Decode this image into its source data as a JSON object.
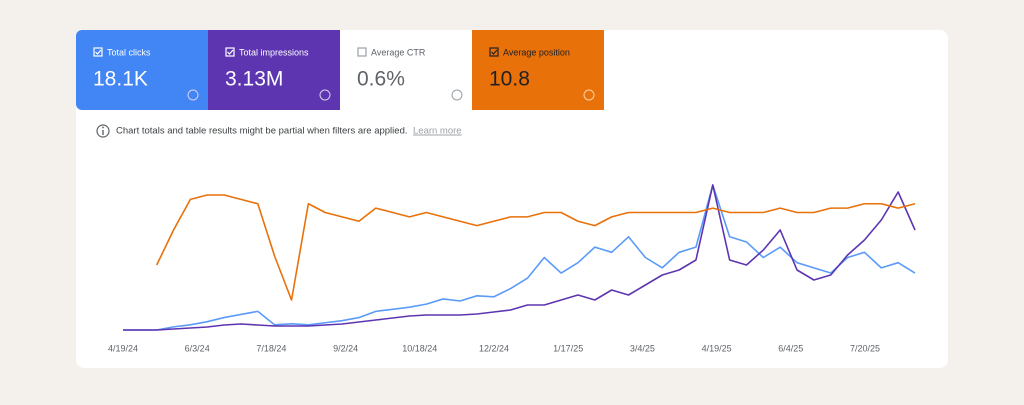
{
  "metrics": [
    {
      "label": "Total clicks",
      "value": "18.1K",
      "color": "#4285f4",
      "checked": true
    },
    {
      "label": "Total impressions",
      "value": "3.13M",
      "color": "#5e35b1",
      "checked": true
    },
    {
      "label": "Average CTR",
      "value": "0.6%",
      "color": "#ffffff",
      "checked": false
    },
    {
      "label": "Average position",
      "value": "10.8",
      "color": "#e8710a",
      "checked": true
    }
  ],
  "notice": {
    "text": "Chart totals and table results might be partial when filters are applied.",
    "link": "Learn more"
  },
  "chart_data": {
    "type": "line",
    "xticks": [
      "4/19/24",
      "6/3/24",
      "7/18/24",
      "9/2/24",
      "10/18/24",
      "12/2/24",
      "1/17/25",
      "3/4/25",
      "4/19/25",
      "6/4/25",
      "7/20/25"
    ],
    "series": [
      {
        "color": "#5b9bf8",
        "values": [
          0,
          0,
          0,
          3,
          5,
          8,
          12,
          15,
          18,
          5,
          6,
          5,
          7,
          9,
          12,
          18,
          20,
          22,
          25,
          30,
          28,
          33,
          32,
          40,
          50,
          70,
          55,
          65,
          80,
          75,
          90,
          70,
          60,
          75,
          80,
          140,
          90,
          85,
          70,
          80,
          65,
          60,
          55,
          70,
          75,
          60,
          65,
          55
        ]
      },
      {
        "color": "#5e35b1",
        "values": [
          0,
          0,
          0,
          1,
          2,
          3,
          5,
          6,
          5,
          4,
          4,
          4,
          5,
          6,
          8,
          10,
          12,
          14,
          15,
          15,
          15,
          16,
          18,
          20,
          25,
          25,
          30,
          35,
          30,
          40,
          35,
          45,
          55,
          60,
          70,
          145,
          70,
          65,
          80,
          100,
          60,
          50,
          55,
          75,
          90,
          110,
          138,
          100
        ]
      },
      {
        "color": "#e8710a",
        "reversed": true,
        "values": [
          null,
          null,
          16,
          12,
          8.5,
          8,
          8,
          8.5,
          9,
          15,
          20,
          9,
          10,
          10.5,
          11,
          9.5,
          10,
          10.5,
          10,
          10.5,
          11,
          11.5,
          11,
          10.5,
          10.5,
          10,
          10,
          11,
          11.5,
          10.5,
          10,
          10,
          10,
          10,
          10,
          9.5,
          10,
          10,
          10,
          9.5,
          10,
          10,
          9.5,
          9.5,
          9,
          9,
          9.5,
          9
        ]
      }
    ]
  }
}
